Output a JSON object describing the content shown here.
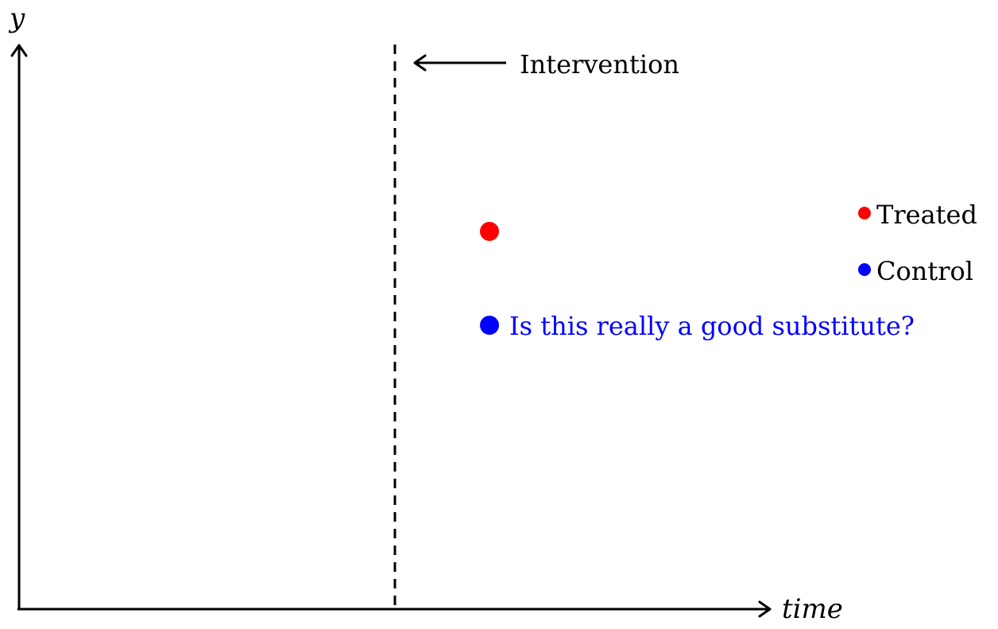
{
  "axes": {
    "y_label": "y",
    "x_label": "time"
  },
  "intervention": {
    "label": "Intervention"
  },
  "points": {
    "treated_color": "#ff0000",
    "control_color": "#0000ff"
  },
  "annotation": {
    "control_question": "Is this really a good substitute?"
  },
  "legend": {
    "items": [
      {
        "label": "Treated",
        "color": "#ff0000"
      },
      {
        "label": "Control",
        "color": "#0000ff"
      }
    ]
  }
}
